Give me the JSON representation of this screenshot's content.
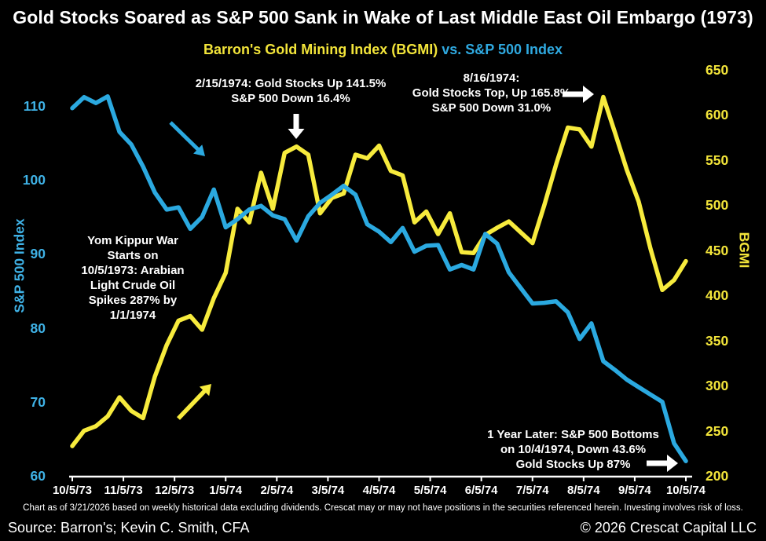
{
  "title": "Gold Stocks Soared as S&P 500 Sank in Wake of Last Middle East Oil Embargo (1973)",
  "subtitle": {
    "gold_part": "Barron's Gold Mining Index (BGMI)",
    "blue_part": "vs. S&P 500 Index"
  },
  "colors": {
    "background": "#000000",
    "title_text": "#ffffff",
    "gold_line": "#f7eb3d",
    "blue_line": "#2ba9e0",
    "gold_axis_text": "#f2e43a",
    "blue_axis_text": "#3fb2e6",
    "axis_line": "#ffffff",
    "annotation_text": "#ffffff"
  },
  "chart_data": {
    "type": "line",
    "frequency": "weekly",
    "x_tick_labels": [
      "10/5/73",
      "11/5/73",
      "12/5/73",
      "1/5/74",
      "2/5/74",
      "3/5/74",
      "4/5/74",
      "5/5/74",
      "6/5/74",
      "7/5/74",
      "8/5/74",
      "9/5/74",
      "10/5/74"
    ],
    "left_axis": {
      "label": "S&P 500 Index",
      "min": 60,
      "max": 110,
      "ticks": [
        60,
        70,
        80,
        90,
        100,
        110
      ]
    },
    "right_axis": {
      "label": "BGMI",
      "min": 200,
      "max": 650,
      "ticks": [
        200,
        250,
        300,
        350,
        400,
        450,
        500,
        550,
        600,
        650
      ]
    },
    "grid": false,
    "legend_position": "subtitle",
    "series": [
      {
        "name": "Barron's Gold Mining Index (BGMI)",
        "axis": "right",
        "color": "#f7eb3d",
        "values": [
          233,
          250,
          255,
          266,
          287,
          272,
          264,
          310,
          345,
          372,
          377,
          362,
          397,
          425,
          496,
          481,
          536,
          496,
          558,
          565,
          556,
          491,
          508,
          513,
          556,
          552,
          566,
          538,
          533,
          481,
          493,
          468,
          491,
          448,
          447,
          467,
          475,
          482,
          470,
          458,
          500,
          545,
          586,
          584,
          565,
          620,
          580,
          539,
          504,
          452,
          406,
          417,
          438
        ]
      },
      {
        "name": "S&P 500 Index",
        "axis": "left",
        "color": "#2ba9e0",
        "values": [
          109.7,
          111.2,
          110.4,
          111.3,
          106.5,
          104.8,
          101.8,
          98.3,
          96.0,
          96.3,
          93.4,
          95.0,
          98.7,
          93.6,
          94.7,
          96.0,
          96.5,
          95.2,
          94.7,
          91.8,
          95.1,
          96.9,
          98.0,
          99.2,
          98.0,
          94.0,
          93.0,
          91.6,
          93.5,
          90.3,
          91.1,
          91.2,
          87.9,
          88.5,
          87.9,
          92.7,
          91.4,
          87.5,
          85.4,
          83.3,
          83.4,
          83.6,
          82.1,
          78.5,
          80.6,
          75.5,
          74.3,
          73.0,
          72.0,
          71.0,
          70.0,
          64.4,
          62.0
        ]
      }
    ],
    "annotations": [
      {
        "id": "feb-1974-gold-peak",
        "arrow": "down",
        "text": "2/15/1974: Gold Stocks Up 141.5%\nS&P 500 Down 16.4%"
      },
      {
        "id": "aug-1974-gold-top",
        "arrow": "right",
        "text": "8/16/1974:\nGold Stocks Top, Up 165.8%\nS&P 500 Down 31.0%"
      },
      {
        "id": "yom-kippur-war",
        "arrow": "none",
        "text": "Yom Kippur War\nStarts on\n10/5/1973: Arabian\nLight Crude Oil\nSpikes 287% by\n1/1/1974"
      },
      {
        "id": "sp500-bottom",
        "arrow": "right",
        "text": "1 Year Later: S&P 500 Bottoms\non 10/4/1974, Down 43.6%\nGold Stocks Up 87%"
      }
    ]
  },
  "footer": {
    "disclaimer": "Chart as of 3/21/2026 based on weekly historical data excluding dividends. Crescat may or may not have positions in the securities referenced herein. Investing involves risk of loss.",
    "source": "Source: Barron's; Kevin C. Smith, CFA",
    "copyright": "© 2026 Crescat Capital LLC"
  }
}
